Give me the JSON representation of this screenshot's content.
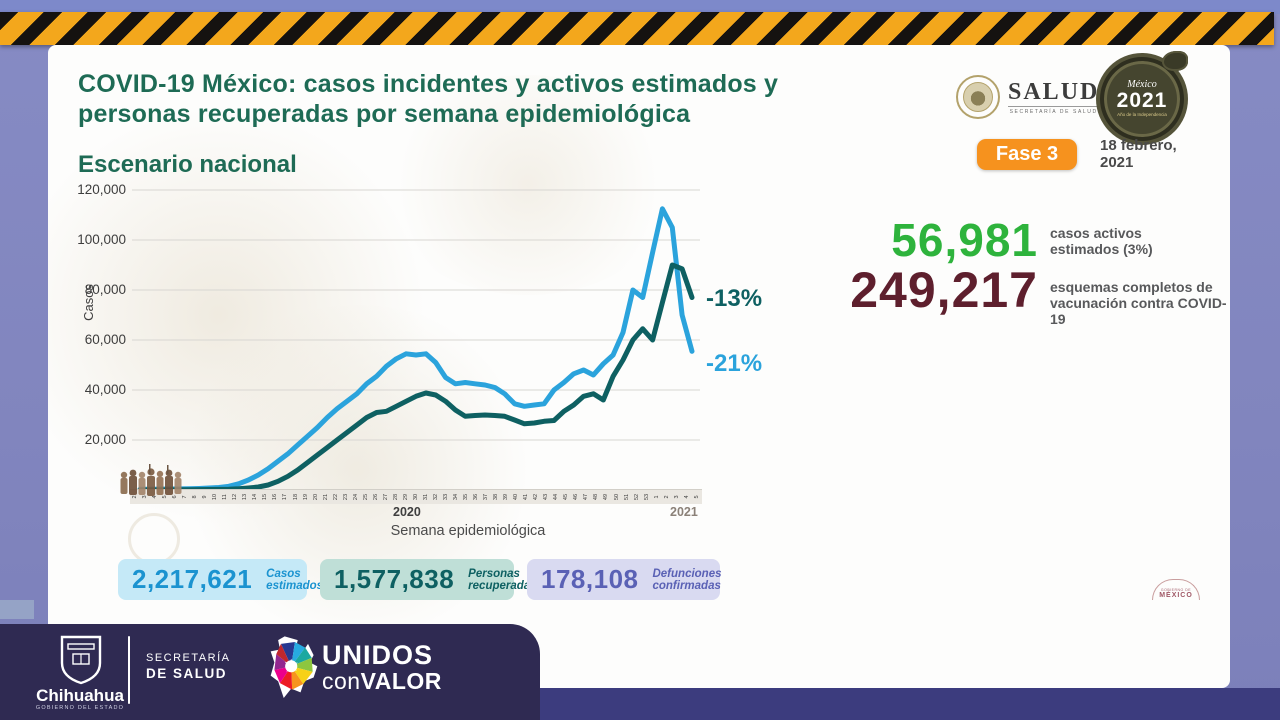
{
  "header": {
    "title_line1": "COVID-19 México: casos incidentes y activos estimados y",
    "title_line2": "personas recuperadas por semana epidemiológica",
    "subtitle": "Escenario nacional",
    "salud_word": "SALUD",
    "salud_sub": "SECRETARÍA DE SALUD",
    "mx2021_name": "México",
    "mx2021_year": "2021",
    "mx2021_sub": "Año de la Independencia",
    "phase_badge": "Fase 3",
    "date_line1": "18 febrero,",
    "date_line2": "2021"
  },
  "stats": {
    "active": {
      "value": "56,981",
      "label_line1": "casos activos",
      "label_line2": "estimados (3%)",
      "color": "#2eb33c"
    },
    "vaccination": {
      "value": "249,217",
      "label_line1": "esquemas completos de",
      "label_line2": "vacunación contra COVID-19",
      "color": "#5e1f2d"
    }
  },
  "chart_data": {
    "type": "line",
    "title": "Escenario nacional",
    "xlabel": "Semana epidemiológica",
    "ylabel": "Casos",
    "ylim": [
      0,
      120000
    ],
    "grid": "horizontal",
    "legend_position": "none",
    "yticks": [
      20000,
      40000,
      60000,
      80000,
      100000,
      120000
    ],
    "ytick_labels": [
      "20,000",
      "40,000",
      "60,000",
      "80,000",
      "100,000",
      "120,000"
    ],
    "categories": [
      "2",
      "3",
      "4",
      "5",
      "6",
      "7",
      "8",
      "9",
      "10",
      "11",
      "12",
      "13",
      "14",
      "15",
      "16",
      "17",
      "18",
      "19",
      "20",
      "21",
      "22",
      "23",
      "24",
      "25",
      "26",
      "27",
      "28",
      "29",
      "30",
      "31",
      "32",
      "33",
      "34",
      "35",
      "36",
      "37",
      "38",
      "39",
      "40",
      "41",
      "42",
      "43",
      "44",
      "45",
      "46",
      "47",
      "48",
      "49",
      "50",
      "51",
      "52",
      "53",
      "1",
      "2",
      "3",
      "4",
      "5"
    ],
    "year_labels": [
      {
        "label": "2020",
        "covers": "weeks 2-53"
      },
      {
        "label": "2021",
        "covers": "weeks 1-5"
      }
    ],
    "series": [
      {
        "name": "Casos incidentes y activos estimados",
        "color": "#2ba3dc",
        "values": [
          300,
          300,
          350,
          400,
          450,
          500,
          600,
          800,
          1000,
          1500,
          2500,
          4000,
          6000,
          8500,
          11500,
          14500,
          18000,
          21500,
          25000,
          29000,
          32500,
          35500,
          38500,
          42500,
          45500,
          49500,
          52500,
          54500,
          54000,
          54500,
          51000,
          45000,
          42500,
          43000,
          42500,
          42000,
          41000,
          38500,
          34500,
          33500,
          34000,
          34500,
          40000,
          43000,
          46500,
          48000,
          46000,
          50500,
          54000,
          63000,
          80000,
          77000,
          95000,
          112500,
          105000,
          70000,
          55500
        ],
        "end_annotation": "-21%"
      },
      {
        "name": "Personas recuperadas",
        "color": "#0e6062",
        "values": [
          0,
          0,
          0,
          0,
          100,
          100,
          150,
          200,
          250,
          300,
          500,
          800,
          1200,
          2000,
          3500,
          5500,
          8000,
          11000,
          14000,
          17000,
          20000,
          23000,
          26000,
          29000,
          31000,
          31500,
          33500,
          35500,
          37500,
          38800,
          38000,
          35500,
          32000,
          29500,
          29800,
          30000,
          29800,
          29500,
          28000,
          26500,
          26800,
          27500,
          27800,
          31500,
          34000,
          37500,
          38500,
          36000,
          45500,
          52000,
          60000,
          64500,
          60000,
          75000,
          90000,
          88500,
          77000
        ],
        "end_annotation": "-13%"
      }
    ],
    "annotations": [
      {
        "text": "-13%",
        "series": "Personas recuperadas",
        "color": "#0e6062"
      },
      {
        "text": "-21%",
        "series": "Casos incidentes y activos estimados",
        "color": "#2ba3dc"
      }
    ]
  },
  "totals": [
    {
      "value": "2,217,621",
      "label_line1": "Casos",
      "label_line2": "estimados"
    },
    {
      "value": "1,577,838",
      "label_line1": "Personas",
      "label_line2": "recuperadas"
    },
    {
      "value": "178,108",
      "label_line1": "Defunciones",
      "label_line2": "confirmadas"
    }
  ],
  "gob_watermark": {
    "line1": "GOBIERNO DE",
    "line2": "MÉXICO"
  },
  "footer": {
    "state_name": "Chihuahua",
    "state_sub": "GOBIERNO DEL ESTADO",
    "ministry_line1": "SECRETARÍA",
    "ministry_line2": "DE SALUD",
    "campaign_line1": "UNIDOS",
    "campaign_line2_a": "con",
    "campaign_line2_b": "VALOR"
  }
}
